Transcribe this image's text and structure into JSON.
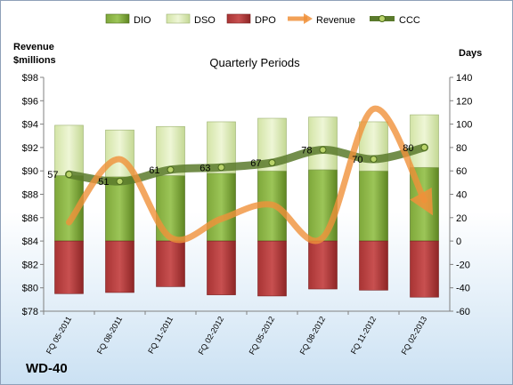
{
  "company": "WD-40",
  "chart_data": {
    "type": "bar",
    "title": "Quarterly Periods",
    "left_axis": {
      "label_line1": "Revenue",
      "label_line2": "$millions",
      "range": [
        78,
        98
      ],
      "step": 2,
      "prefix": "$"
    },
    "right_axis": {
      "label": "Days",
      "range": [
        -60,
        140
      ],
      "step": 20
    },
    "categories": [
      "FQ 05-2011",
      "FQ 08-2011",
      "FQ 11-2011",
      "FQ 02-2012",
      "FQ 05-2012",
      "FQ 08-2012",
      "FQ 11-2012",
      "FQ 02-2013"
    ],
    "series": [
      {
        "name": "DIO",
        "kind": "stacked-bar",
        "axis": "days",
        "color": "#6f9a2c",
        "values": [
          56,
          55,
          56,
          58,
          60,
          61,
          60,
          63
        ]
      },
      {
        "name": "DSO",
        "kind": "stacked-bar",
        "axis": "days",
        "color": "#dcebb4",
        "values": [
          43,
          40,
          42,
          44,
          45,
          45,
          42,
          45
        ]
      },
      {
        "name": "DPO",
        "kind": "bar-negative",
        "axis": "days",
        "color": "#b43a3a",
        "values": [
          -45,
          -44,
          -39,
          -46,
          -47,
          -41,
          -42,
          -48
        ]
      },
      {
        "name": "Revenue",
        "kind": "line",
        "axis": "revenue",
        "color": "#f0913a",
        "values": [
          85.6,
          91.0,
          84.3,
          85.9,
          87.1,
          84.3,
          95.3,
          87.5
        ]
      },
      {
        "name": "CCC",
        "kind": "line",
        "axis": "days",
        "color": "#5a7a2c",
        "values": [
          57,
          51,
          61,
          63,
          67,
          78,
          70,
          80
        ]
      }
    ],
    "ccc_labels": [
      "57",
      "51",
      "61",
      "63",
      "67",
      "78",
      "70",
      "80"
    ],
    "legend": {
      "position": "top",
      "items": [
        "DIO",
        "DSO",
        "DPO",
        "Revenue",
        "CCC"
      ]
    },
    "grid": false
  }
}
